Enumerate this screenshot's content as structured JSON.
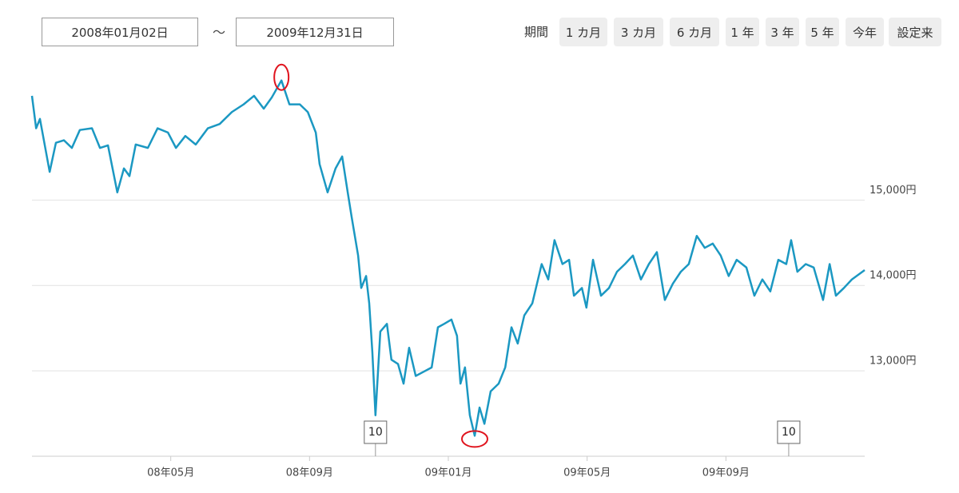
{
  "header": {
    "start_date": "2008年01月02日",
    "separator": "～",
    "end_date": "2009年12月31日",
    "period_label": "期間",
    "period_buttons": [
      "1 カ月",
      "3 カ月",
      "6 カ月",
      "1 年",
      "3 年",
      "5 年",
      "今年",
      "設定来"
    ]
  },
  "chart_data": {
    "type": "line",
    "x": [
      0,
      0.12,
      0.23,
      0.51,
      0.69,
      0.92,
      1.15,
      1.38,
      1.73,
      1.96,
      2.19,
      2.46,
      2.65,
      2.81,
      2.99,
      3.34,
      3.62,
      3.92,
      4.15,
      4.42,
      4.72,
      5.07,
      5.41,
      5.76,
      6.1,
      6.4,
      6.68,
      6.91,
      7.19,
      7.42,
      7.72,
      7.95,
      8.18,
      8.29,
      8.52,
      8.75,
      8.94,
      9.1,
      9.21,
      9.4,
      9.49,
      9.63,
      9.72,
      9.81,
      9.9,
      10.04,
      10.23,
      10.36,
      10.55,
      10.71,
      10.87,
      11.06,
      11.29,
      11.52,
      11.7,
      11.88,
      12.09,
      12.25,
      12.35,
      12.48,
      12.62,
      12.76,
      12.9,
      13.04,
      13.22,
      13.45,
      13.64,
      13.82,
      14.0,
      14.19,
      14.42,
      14.69,
      14.88,
      15.06,
      15.29,
      15.48,
      15.62,
      15.85,
      15.98,
      16.17,
      16.4,
      16.63,
      16.86,
      17.09,
      17.32,
      17.55,
      17.78,
      18.01,
      18.24,
      18.47,
      18.7,
      18.93,
      19.16,
      19.39,
      19.62,
      19.85,
      20.08,
      20.31,
      20.59,
      20.82,
      21.05,
      21.28,
      21.51,
      21.74,
      21.88,
      22.06,
      22.3,
      22.53,
      22.8,
      22.99,
      23.17,
      23.4,
      23.63,
      24
    ],
    "series": [
      {
        "color": "#1b98c2",
        "values": [
          16220,
          15840,
          15950,
          15330,
          15670,
          15700,
          15610,
          15820,
          15840,
          15610,
          15640,
          15090,
          15370,
          15280,
          15650,
          15610,
          15840,
          15790,
          15610,
          15750,
          15650,
          15840,
          15890,
          16030,
          16120,
          16220,
          16070,
          16200,
          16400,
          16120,
          16120,
          16030,
          15790,
          15420,
          15090,
          15370,
          15510,
          15090,
          14810,
          14350,
          13970,
          14110,
          13790,
          13220,
          12480,
          13460,
          13550,
          13130,
          13080,
          12850,
          13270,
          12940,
          12990,
          13040,
          13510,
          13550,
          13600,
          13410,
          12850,
          13040,
          12480,
          12240,
          12570,
          12380,
          12760,
          12850,
          13040,
          13510,
          13320,
          13650,
          13790,
          14250,
          14070,
          14530,
          14250,
          14300,
          13880,
          13970,
          13740,
          14300,
          13880,
          13970,
          14160,
          14250,
          14350,
          14070,
          14250,
          14390,
          13830,
          14020,
          14160,
          14250,
          14580,
          14440,
          14490,
          14350,
          14110,
          14300,
          14210,
          13880,
          14070,
          13930,
          14300,
          14250,
          14530,
          14160,
          14250,
          14210,
          13830,
          14250,
          13880,
          13970,
          14070,
          14180
        ]
      }
    ],
    "xlim": [
      0,
      24
    ],
    "xticks": [
      {
        "value": 4,
        "label": "08年05月"
      },
      {
        "value": 8,
        "label": "08年09月"
      },
      {
        "value": 12,
        "label": "09年01月"
      },
      {
        "value": 16,
        "label": "09年05月"
      },
      {
        "value": 20,
        "label": "09年09月"
      }
    ],
    "ylim": [
      12000,
      16500
    ],
    "yticks": [
      {
        "value": 13000,
        "label": "13,000円"
      },
      {
        "value": 14000,
        "label": "14,000円"
      },
      {
        "value": 15000,
        "label": "15,000円"
      }
    ],
    "grid": true,
    "markers": [
      {
        "x": 9.9,
        "text": "10"
      },
      {
        "x": 21.81,
        "text": "10"
      }
    ]
  }
}
